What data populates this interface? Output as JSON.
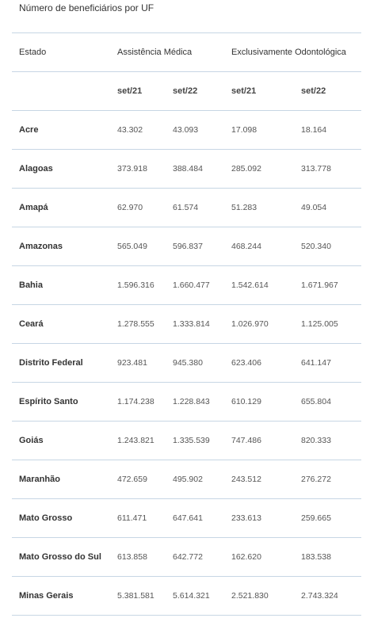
{
  "caption": "Número de beneficiários por UF",
  "header": {
    "estado": "Estado",
    "assistencia": "Assistência Médica",
    "odonto": "Exclusivamente Odontológica"
  },
  "subheader": [
    "set/21",
    "set/22",
    "set/21",
    "set/22"
  ],
  "rows": [
    {
      "uf": "Acre",
      "v": [
        "43.302",
        "43.093",
        "17.098",
        "18.164"
      ]
    },
    {
      "uf": "Alagoas",
      "v": [
        "373.918",
        "388.484",
        "285.092",
        "313.778"
      ]
    },
    {
      "uf": "Amapá",
      "v": [
        "62.970",
        "61.574",
        "51.283",
        "49.054"
      ]
    },
    {
      "uf": "Amazonas",
      "v": [
        "565.049",
        "596.837",
        "468.244",
        "520.340"
      ]
    },
    {
      "uf": "Bahia",
      "v": [
        "1.596.316",
        "1.660.477",
        "1.542.614",
        "1.671.967"
      ]
    },
    {
      "uf": "Ceará",
      "v": [
        "1.278.555",
        "1.333.814",
        "1.026.970",
        "1.125.005"
      ]
    },
    {
      "uf": "Distrito Federal",
      "v": [
        "923.481",
        "945.380",
        "623.406",
        "641.147"
      ]
    },
    {
      "uf": "Espírito Santo",
      "v": [
        "1.174.238",
        "1.228.843",
        "610.129",
        "655.804"
      ]
    },
    {
      "uf": "Goiás",
      "v": [
        "1.243.821",
        "1.335.539",
        "747.486",
        "820.333"
      ]
    },
    {
      "uf": "Maranhão",
      "v": [
        "472.659",
        "495.902",
        "243.512",
        "276.272"
      ]
    },
    {
      "uf": "Mato Grosso",
      "v": [
        "611.471",
        "647.641",
        "233.613",
        "259.665"
      ]
    },
    {
      "uf": "Mato Grosso do Sul",
      "v": [
        "613.858",
        "642.772",
        "162.620",
        "183.538"
      ]
    },
    {
      "uf": "Minas Gerais",
      "v": [
        "5.381.581",
        "5.614.321",
        "2.521.830",
        "2.743.324"
      ]
    }
  ]
}
